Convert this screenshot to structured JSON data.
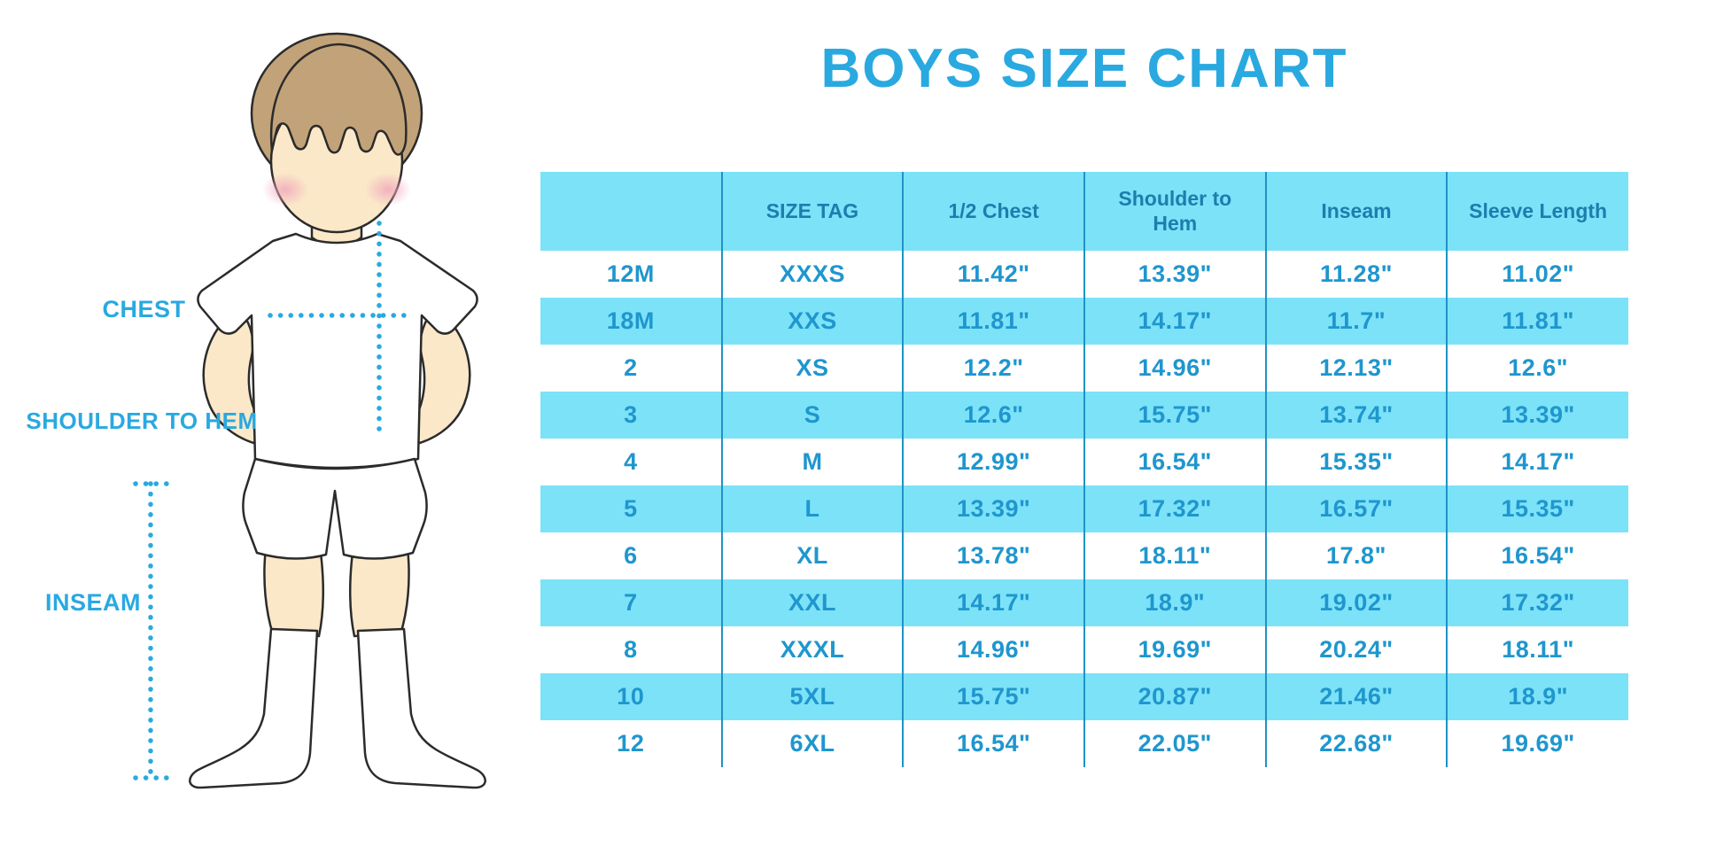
{
  "title": "BOYS SIZE CHART",
  "figure": {
    "labels": {
      "chest": "CHEST",
      "shoulder_to_hem": "SHOULDER TO HEM",
      "inseam": "INSEAM"
    }
  },
  "chart_data": {
    "type": "table",
    "title": "BOYS SIZE CHART",
    "columns": [
      "",
      "SIZE TAG",
      "1/2 Chest",
      "Shoulder to Hem",
      "Inseam",
      "Sleeve Length"
    ],
    "rows": [
      [
        "12M",
        "XXXS",
        "11.42\"",
        "13.39\"",
        "11.28\"",
        "11.02\""
      ],
      [
        "18M",
        "XXS",
        "11.81\"",
        "14.17\"",
        "11.7\"",
        "11.81\""
      ],
      [
        "2",
        "XS",
        "12.2\"",
        "14.96\"",
        "12.13\"",
        "12.6\""
      ],
      [
        "3",
        "S",
        "12.6\"",
        "15.75\"",
        "13.74\"",
        "13.39\""
      ],
      [
        "4",
        "M",
        "12.99\"",
        "16.54\"",
        "15.35\"",
        "14.17\""
      ],
      [
        "5",
        "L",
        "13.39\"",
        "17.32\"",
        "16.57\"",
        "15.35\""
      ],
      [
        "6",
        "XL",
        "13.78\"",
        "18.11\"",
        "17.8\"",
        "16.54\""
      ],
      [
        "7",
        "XXL",
        "14.17\"",
        "18.9\"",
        "19.02\"",
        "17.32\""
      ],
      [
        "8",
        "XXXL",
        "14.96\"",
        "19.69\"",
        "20.24\"",
        "18.11\""
      ],
      [
        "10",
        "5XL",
        "15.75\"",
        "20.87\"",
        "21.46\"",
        "18.9\""
      ],
      [
        "12",
        "6XL",
        "16.54\"",
        "22.05\"",
        "22.68\"",
        "19.69\""
      ]
    ],
    "striping": "alternating white / light-cyan rows, cyan header row, no horizontal borders, thin blue column separators",
    "legend_position": "none",
    "grid": "vertical-only"
  },
  "colors": {
    "accent": "#29A9E0",
    "stripe": "#7CE2F8",
    "header_text": "#1B7EAD",
    "cell_text": "#1F96CE",
    "grid_line": "#1E93C6",
    "hair": "#C2A278",
    "skin": "#FAE8C9",
    "blush": "#F2A8BC",
    "outline": "#2B2B2B"
  }
}
